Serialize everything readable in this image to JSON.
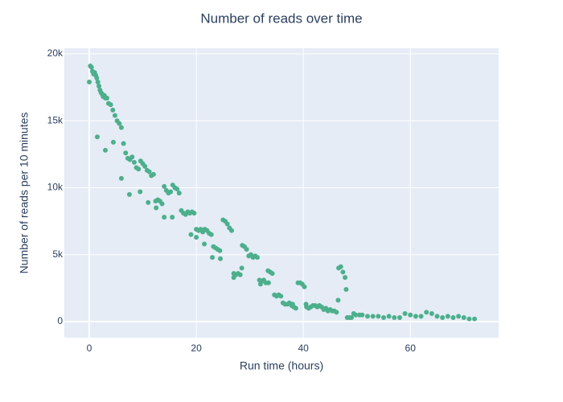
{
  "chart_data": {
    "type": "scatter",
    "title": "Number of reads over time",
    "x_label": "Run time (hours)",
    "y_label": "Number of reads per 10 minutes",
    "color": "#4daf8c",
    "grid": true,
    "xlim": [
      -4.66,
      76.5
    ],
    "ylim": [
      -1200,
      20420
    ],
    "xticks": [
      0,
      20,
      40,
      60
    ],
    "yticks": [
      0,
      {
        "value": 5000,
        "label": "5k"
      },
      {
        "value": 10000,
        "label": "10k"
      },
      {
        "value": 15000,
        "label": "15k"
      },
      {
        "value": 20000,
        "label": "20k"
      }
    ],
    "x": [
      0.2,
      0.4,
      0.6,
      0.8,
      1,
      1.2,
      1.4,
      1.6,
      1.8,
      2,
      2.2,
      2.4,
      2.6,
      2.8,
      3,
      3.3,
      3.6,
      4,
      4.4,
      4.8,
      5.2,
      5.6,
      6,
      6.4,
      6.8,
      7.2,
      7.6,
      8,
      8.4,
      8.8,
      9.2,
      9.6,
      10,
      10.4,
      10.8,
      11.2,
      11.6,
      12,
      12.4,
      12.8,
      13.2,
      13.6,
      14,
      14.4,
      14.8,
      15.2,
      15.6,
      16,
      16.4,
      16.8,
      17.2,
      17.6,
      18,
      18.4,
      18.8,
      19.2,
      19.6,
      20,
      20.4,
      20.8,
      21.2,
      21.6,
      22,
      22.4,
      22.8,
      23.2,
      23.6,
      24,
      24.4,
      25,
      25.4,
      25.8,
      26.2,
      26.6,
      27,
      27.4,
      27.8,
      28.2,
      28.6,
      29,
      29.4,
      29.8,
      30.2,
      30.6,
      31,
      31.4,
      31.8,
      32.2,
      32.6,
      33,
      33.4,
      33.8,
      34.2,
      34.6,
      35,
      35.4,
      35.8,
      36.2,
      36.6,
      37,
      37.4,
      37.8,
      38.2,
      38.6,
      39,
      39.4,
      39.8,
      40.2,
      40.6,
      41,
      41.4,
      41.8,
      42.2,
      42.6,
      43,
      43.4,
      43.8,
      44.2,
      44.6,
      45,
      45.4,
      45.8,
      46.2,
      46.6,
      47,
      47.4,
      47.8,
      48.2,
      48.6,
      49,
      49.4,
      49.8,
      50.5,
      51,
      52,
      53,
      54,
      55,
      56,
      57,
      58,
      59,
      60,
      61,
      62,
      63,
      64,
      65,
      66,
      67,
      68,
      69,
      70,
      71,
      72,
      0,
      1.5,
      3,
      4.5,
      6,
      7.5,
      9.5,
      11,
      12.5,
      14,
      15.5,
      19,
      20,
      21.5,
      23,
      24.5,
      27,
      28.5,
      32,
      33.5,
      38,
      40.5,
      46.5,
      48
    ],
    "values": [
      19100,
      19000,
      18700,
      18500,
      18600,
      18400,
      18200,
      17900,
      17600,
      17300,
      17100,
      17000,
      16800,
      16900,
      16700,
      16700,
      16300,
      16200,
      15800,
      15400,
      15000,
      14800,
      14500,
      13300,
      12600,
      12200,
      12100,
      12300,
      11900,
      11500,
      11400,
      12000,
      11800,
      11600,
      11300,
      11200,
      10900,
      11000,
      9000,
      9100,
      9000,
      8800,
      10100,
      9800,
      9600,
      9700,
      10200,
      10000,
      9900,
      9600,
      8300,
      8100,
      8000,
      8200,
      8100,
      8200,
      8100,
      6900,
      6800,
      6900,
      6700,
      6900,
      6800,
      6600,
      6500,
      5600,
      5500,
      5400,
      5300,
      7600,
      7500,
      7300,
      7000,
      6800,
      3600,
      3500,
      3600,
      3500,
      5700,
      5600,
      5400,
      4900,
      5000,
      4800,
      4900,
      4800,
      3100,
      3000,
      3100,
      2900,
      3800,
      3700,
      3600,
      2000,
      1900,
      2000,
      1900,
      1400,
      1300,
      1300,
      1400,
      1200,
      1100,
      1000,
      2900,
      2900,
      2800,
      2600,
      1100,
      1000,
      1100,
      1200,
      1200,
      1100,
      1200,
      1100,
      900,
      1000,
      800,
      900,
      800,
      800,
      700,
      4000,
      4100,
      3700,
      3300,
      300,
      300,
      300,
      600,
      500,
      500,
      500,
      400,
      400,
      400,
      300,
      400,
      300,
      300,
      600,
      500,
      400,
      400,
      700,
      600,
      400,
      300,
      400,
      300,
      400,
      300,
      200,
      200,
      17900,
      13800,
      12800,
      13400,
      10700,
      9500,
      9700,
      8900,
      8500,
      7800,
      7800,
      6500,
      6300,
      5800,
      4800,
      4700,
      3300,
      4000,
      2800,
      2900,
      1300,
      1300,
      1600,
      2400
    ]
  }
}
